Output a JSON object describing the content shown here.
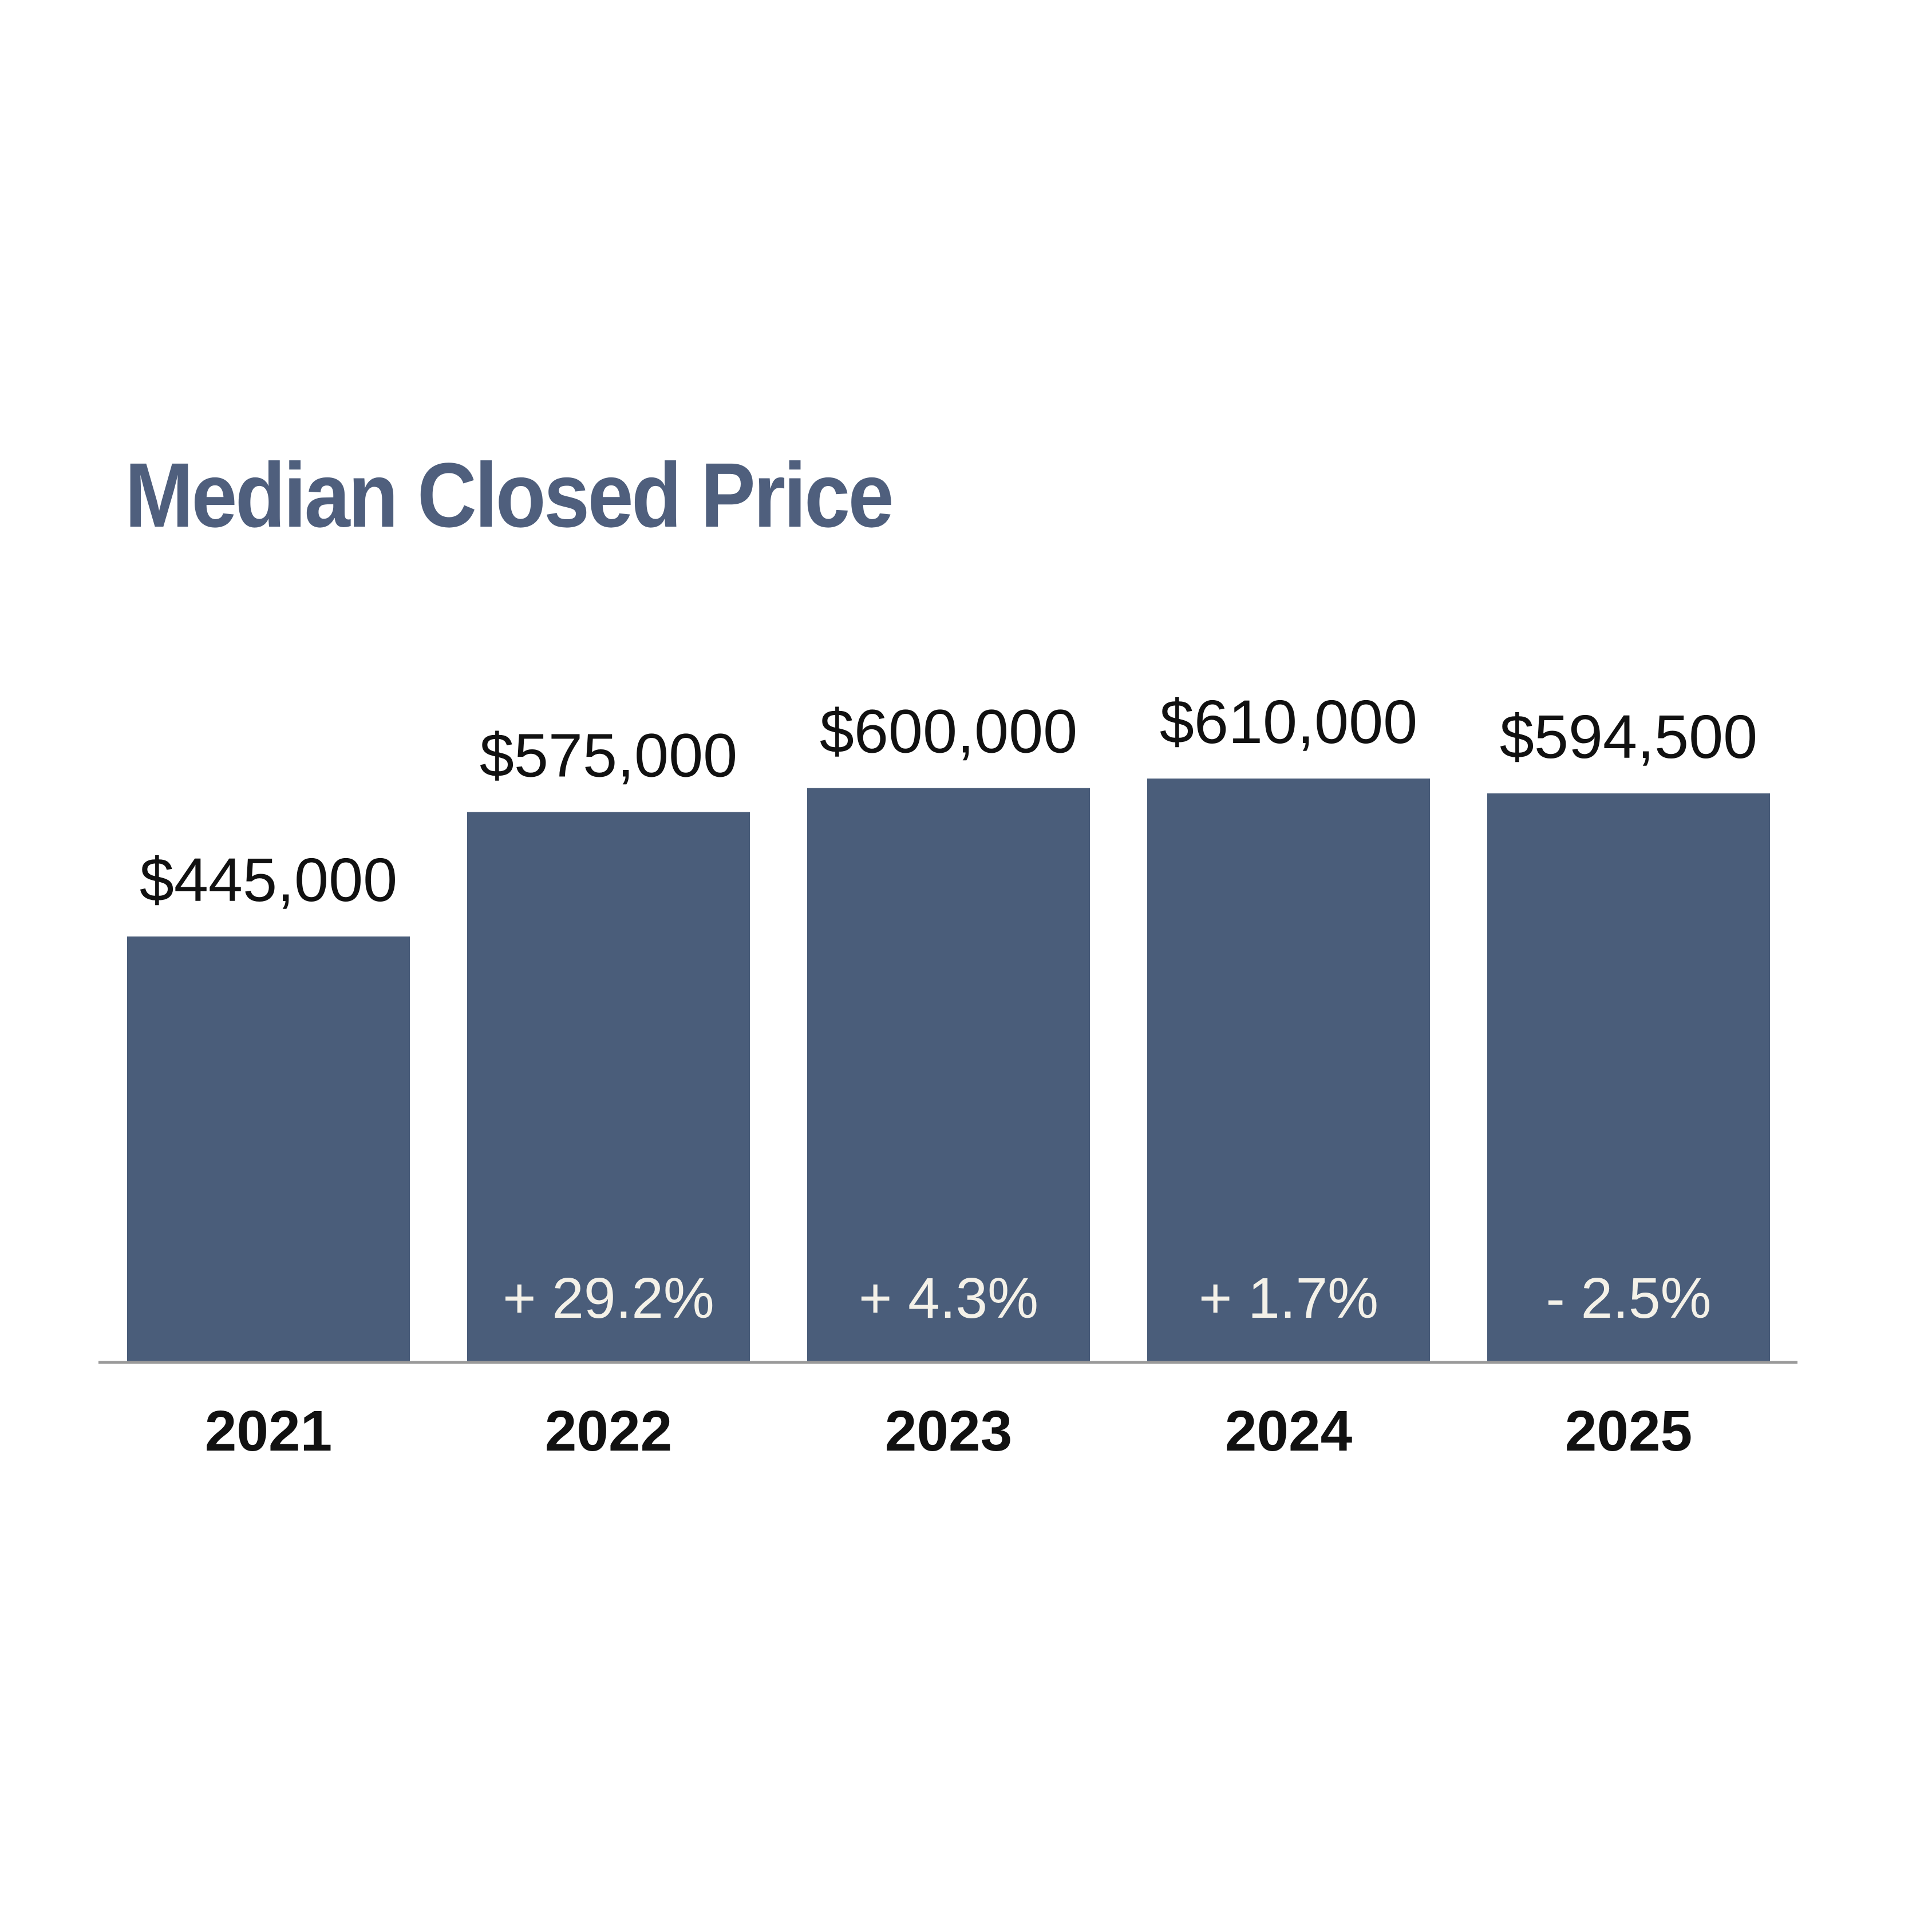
{
  "chart_data": {
    "type": "bar",
    "title": "Median Closed Price",
    "xlabel": "",
    "ylabel": "",
    "categories": [
      "2021",
      "2022",
      "2023",
      "2024",
      "2025"
    ],
    "values": [
      445000,
      575000,
      600000,
      610000,
      594500
    ],
    "value_labels": [
      "$445,000",
      "$575,000",
      "$600,000",
      "$610,000",
      "$594,500"
    ],
    "change_labels": [
      "",
      "+ 29.2%",
      "+ 4.3%",
      "+ 1.7%",
      "- 2.5%"
    ],
    "ylim": [
      0,
      610000
    ],
    "grid": false,
    "legend": "none",
    "bar_color": "#4a5d7a",
    "baseline_color": "#9a9a9a"
  }
}
